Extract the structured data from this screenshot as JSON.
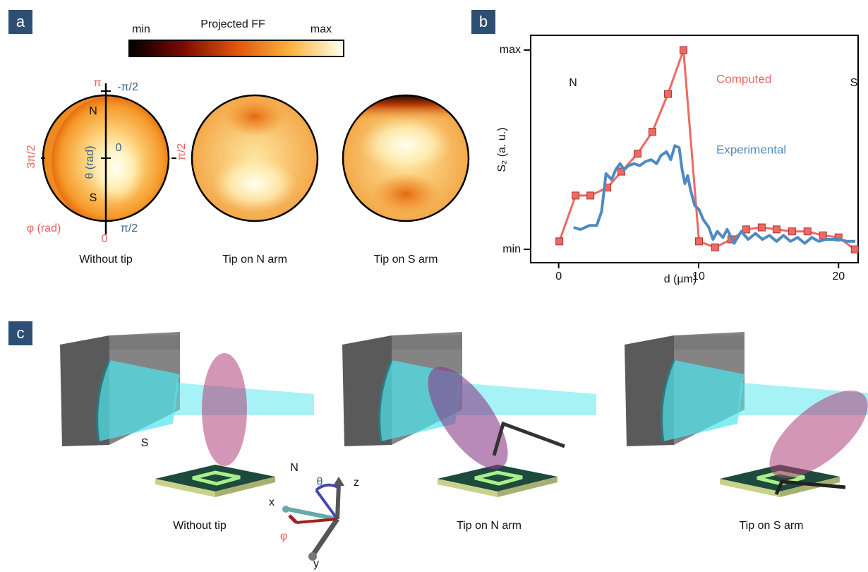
{
  "panel_labels": [
    "a",
    "b",
    "c"
  ],
  "panel_a": {
    "colorbar": {
      "title": "Projected FF",
      "min_label": "min",
      "max_label": "max"
    },
    "axis_labels": {
      "phi_top": "π",
      "theta_top": "-π/2",
      "north": "N",
      "theta_zero": "0",
      "theta_label": "θ (rad)",
      "south": "S",
      "phi_left": "3π/2",
      "phi_right": "π/2",
      "phi_label": "φ (rad)",
      "phi_bottom": "0",
      "theta_bottom": "π/2"
    },
    "captions": [
      "Without tip",
      "Tip on N arm",
      "Tip on S arm"
    ]
  },
  "chart_data": {
    "type": "line",
    "xlabel": "d (µm)",
    "ylabel": "S₂ (a. u.)",
    "xlim": [
      -2,
      21.4
    ],
    "ylim": [
      -0.067,
      1.074
    ],
    "xticks": [
      0,
      10,
      20
    ],
    "yticks": [
      {
        "value": 0,
        "label": "min"
      },
      {
        "value": 1,
        "label": "max"
      }
    ],
    "annotations": [
      "N",
      "S"
    ],
    "series": [
      {
        "name": "Computed",
        "color": "#ec6a63",
        "marker": "square",
        "x": [
          0.05,
          1.21,
          2.27,
          3.48,
          4.48,
          5.64,
          6.7,
          7.81,
          8.92,
          10.03,
          11.18,
          12.34,
          13.4,
          14.51,
          15.57,
          16.68,
          17.78,
          18.89,
          20.0,
          21.16
        ],
        "values": [
          0.04,
          0.27,
          0.27,
          0.31,
          0.39,
          0.48,
          0.59,
          0.78,
          1.0,
          0.04,
          0.01,
          0.05,
          0.1,
          0.11,
          0.1,
          0.09,
          0.09,
          0.07,
          0.06,
          0.0
        ]
      },
      {
        "name": "Experimental",
        "color": "#4f8ac0",
        "x": [
          1.06,
          1.56,
          2.22,
          2.72,
          3.07,
          3.38,
          3.78,
          4.08,
          4.38,
          4.69,
          4.99,
          5.39,
          5.79,
          6.2,
          6.6,
          7.0,
          7.3,
          7.71,
          8.01,
          8.31,
          8.61,
          8.82,
          9.02,
          9.22,
          9.42,
          9.72,
          10.03,
          10.33,
          10.73,
          11.03,
          11.34,
          11.74,
          12.04,
          12.54,
          13.05,
          13.55,
          14.06,
          14.56,
          15.06,
          15.57,
          16.07,
          16.57,
          17.08,
          17.58,
          18.09,
          18.59,
          19.09,
          19.6,
          20.1,
          20.6,
          21.2
        ],
        "values": [
          0.11,
          0.1,
          0.12,
          0.12,
          0.19,
          0.38,
          0.35,
          0.4,
          0.43,
          0.4,
          0.42,
          0.43,
          0.42,
          0.44,
          0.45,
          0.43,
          0.47,
          0.49,
          0.45,
          0.52,
          0.51,
          0.4,
          0.33,
          0.37,
          0.3,
          0.22,
          0.2,
          0.15,
          0.11,
          0.05,
          0.09,
          0.06,
          0.1,
          0.03,
          0.09,
          0.05,
          0.08,
          0.05,
          0.07,
          0.04,
          0.07,
          0.04,
          0.06,
          0.03,
          0.06,
          0.04,
          0.05,
          0.05,
          0.05,
          0.04,
          0.04
        ]
      }
    ]
  },
  "panel_c": {
    "labels": {
      "south": "S",
      "north": "N"
    },
    "captions": [
      "Without tip",
      "Tip on N arm",
      "Tip on S arm"
    ],
    "axes": {
      "theta": "θ",
      "z": "z",
      "x": "x",
      "phi": "φ",
      "y": "y"
    }
  }
}
